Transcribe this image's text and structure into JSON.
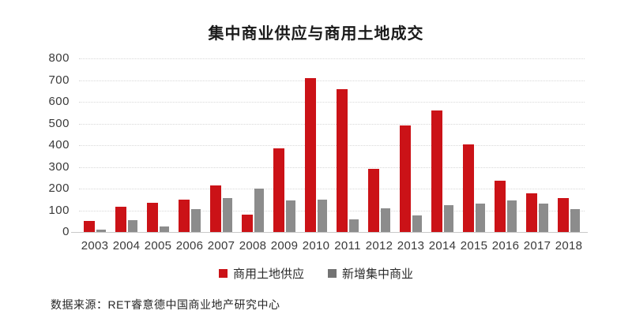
{
  "title": "集中商业供应与商用土地成交",
  "source": "数据来源：RET睿意德中国商业地产研究中心",
  "colors": {
    "series_red": "#cb1217",
    "series_gray": "#8c8c8c",
    "legend_gray_swatch": "#737373",
    "gridline": "#d8d8d8",
    "baseline": "#c9c9c9"
  },
  "chart_data": {
    "type": "bar",
    "title": "集中商业供应与商用土地成交",
    "categories": [
      "2003",
      "2004",
      "2005",
      "2006",
      "2007",
      "2008",
      "2009",
      "2010",
      "2011",
      "2012",
      "2013",
      "2014",
      "2015",
      "2016",
      "2017",
      "2018"
    ],
    "series": [
      {
        "name": "商用土地供应",
        "color": "#cb1217",
        "values": [
          50,
          115,
          135,
          150,
          215,
          80,
          385,
          710,
          660,
          290,
          490,
          560,
          405,
          235,
          180,
          155
        ]
      },
      {
        "name": "新增集中商业",
        "color": "#8c8c8c",
        "values": [
          10,
          55,
          25,
          105,
          155,
          200,
          145,
          150,
          60,
          110,
          75,
          125,
          130,
          145,
          130,
          105
        ]
      }
    ],
    "xlabel": "",
    "ylabel": "",
    "ylim": [
      0,
      800
    ],
    "ytick_step": 100,
    "grid": "horizontal-dotted",
    "legend_position": "bottom-center"
  }
}
